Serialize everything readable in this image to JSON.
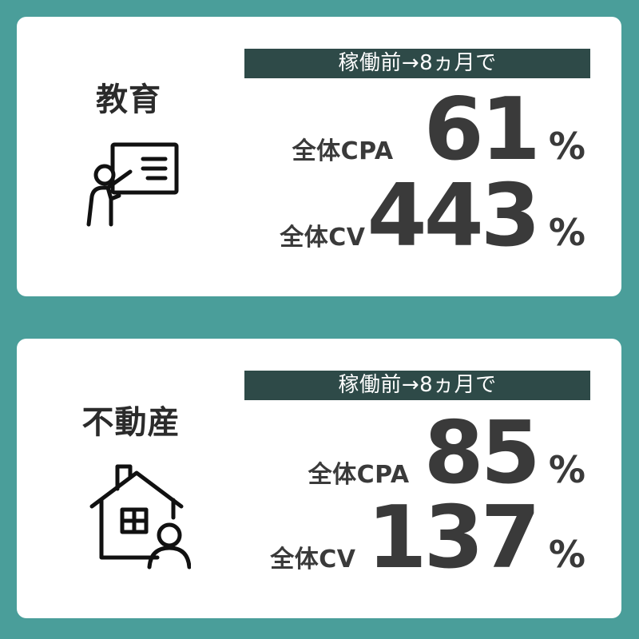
{
  "cards": [
    {
      "category": "教育",
      "icon": "teacher-presentation-icon",
      "banner": "稼働前→8ヵ月で",
      "metrics": [
        {
          "label": "全体CPA",
          "value": "61",
          "unit": "%"
        },
        {
          "label": "全体CV",
          "value": "443",
          "unit": "%"
        }
      ]
    },
    {
      "category": "不動産",
      "icon": "house-person-icon",
      "banner": "稼働前→8ヵ月で",
      "metrics": [
        {
          "label": "全体CPA",
          "value": "85",
          "unit": "%"
        },
        {
          "label": "全体CV",
          "value": "137",
          "unit": "%"
        }
      ]
    }
  ],
  "colors": {
    "background": "#4a9e9a",
    "card": "#ffffff",
    "banner": "#2e4a48",
    "text": "#3a3a3a"
  }
}
